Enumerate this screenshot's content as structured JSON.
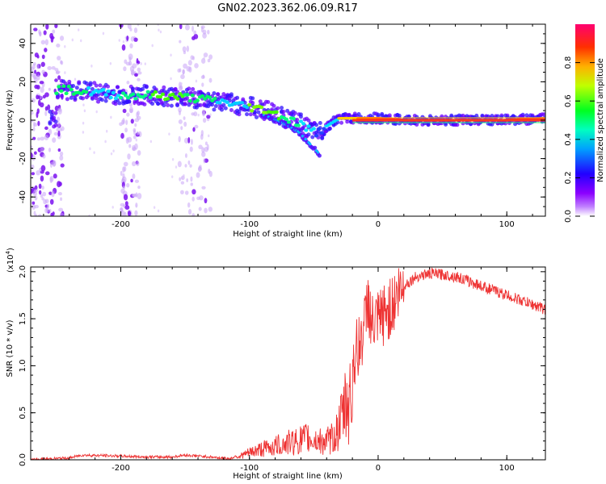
{
  "title": "GN02.2023.362.06.09.R17",
  "chart_data": [
    {
      "type": "heatmap",
      "name": "spectrogram",
      "xlabel": "Height of straight line (km)",
      "ylabel": "Frequency (Hz)",
      "xlim": [
        -270,
        130
      ],
      "ylim": [
        -50,
        50
      ],
      "xticks": [
        -200,
        -100,
        0,
        100
      ],
      "yticks": [
        -40,
        -20,
        0,
        20,
        40
      ],
      "colorbar": {
        "label": "Normalized spectral amplitude",
        "range": [
          0,
          1
        ],
        "ticks": [
          "0.0",
          "0.2",
          "0.4",
          "0.6",
          "0.8"
        ],
        "tick_values": [
          0.0,
          0.2,
          0.4,
          0.6,
          0.8
        ],
        "colormap": [
          "#ffffff",
          "#8b00ff",
          "#2200ff",
          "#00c8ff",
          "#00ff40",
          "#ffff00",
          "#ff6000",
          "#ff1060"
        ]
      },
      "ridge": [
        {
          "x": -250,
          "y": 16
        },
        {
          "x": -225,
          "y": 15
        },
        {
          "x": -200,
          "y": 13
        },
        {
          "x": -175,
          "y": 13
        },
        {
          "x": -150,
          "y": 12
        },
        {
          "x": -125,
          "y": 10
        },
        {
          "x": -100,
          "y": 7
        },
        {
          "x": -85,
          "y": 5
        },
        {
          "x": -75,
          "y": 2
        },
        {
          "x": -60,
          "y": -2
        },
        {
          "x": -48,
          "y": -7
        },
        {
          "x": -40,
          "y": -3
        },
        {
          "x": -30,
          "y": 1
        },
        {
          "x": -15,
          "y": 1
        },
        {
          "x": 0,
          "y": 1
        },
        {
          "x": 20,
          "y": 0
        },
        {
          "x": 60,
          "y": 0
        },
        {
          "x": 100,
          "y": 0
        },
        {
          "x": 130,
          "y": 1
        }
      ],
      "ridge_colors": [
        "#00ff60",
        "#00e0ff",
        "#00ff80",
        "#40ff00",
        "#00ff60",
        "#00d0ff",
        "#80ff00",
        "#40ff00",
        "#00ff80",
        "#00e0ff",
        "#2040ff",
        "#00e0ff",
        "#ffd000",
        "#ff4000",
        "#ff2020",
        "#ff2020",
        "#ff3020",
        "#ff2020",
        "#ff4000"
      ],
      "branch": [
        {
          "x": -90,
          "y": 3
        },
        {
          "x": -75,
          "y": -1
        },
        {
          "x": -62,
          "y": -6
        },
        {
          "x": -52,
          "y": -13
        },
        {
          "x": -45,
          "y": -18
        }
      ],
      "noise_columns": [
        {
          "x": [
            -270,
            -245
          ]
        },
        {
          "x": [
            -200,
            -185
          ]
        },
        {
          "x": [
            -155,
            -130
          ]
        }
      ]
    },
    {
      "type": "line",
      "name": "snr",
      "xlabel": "Height of straight line (km)",
      "ylabel": "SNR (10 * v/v)",
      "y_multiplier": "(x10",
      "y_multiplier_exp": "4",
      "y_multiplier_close": ")",
      "xlim": [
        -270,
        130
      ],
      "ylim": [
        0,
        2.05
      ],
      "xticks": [
        -200,
        -100,
        0,
        100
      ],
      "yticks": [
        "0.0",
        "0.5",
        "1.0",
        "1.5",
        "2.0"
      ],
      "ytick_values": [
        0,
        0.5,
        1.0,
        1.5,
        2.0
      ],
      "color": "#ee3333",
      "series": [
        {
          "x": [
            -270,
            -240,
            -230,
            -200,
            -180,
            -160,
            -150,
            -130,
            -115,
            -105,
            -95,
            -85,
            -75,
            -65,
            -55,
            -45,
            -40,
            -35,
            -30,
            -25,
            -20,
            -15,
            -10,
            -8,
            -5,
            0,
            5,
            10,
            15,
            20,
            30,
            40,
            50,
            60,
            70,
            80,
            90,
            100,
            110,
            120,
            130
          ],
          "y": [
            0.0,
            0.02,
            0.05,
            0.04,
            0.03,
            0.03,
            0.05,
            0.03,
            0.01,
            0.08,
            0.15,
            0.2,
            0.25,
            0.3,
            0.35,
            0.3,
            0.3,
            0.35,
            0.55,
            0.9,
            1.05,
            1.2,
            1.45,
            1.75,
            1.4,
            1.45,
            1.55,
            1.62,
            1.75,
            1.85,
            1.95,
            1.98,
            1.97,
            1.95,
            1.9,
            1.85,
            1.8,
            1.75,
            1.7,
            1.65,
            1.6
          ]
        }
      ]
    }
  ]
}
